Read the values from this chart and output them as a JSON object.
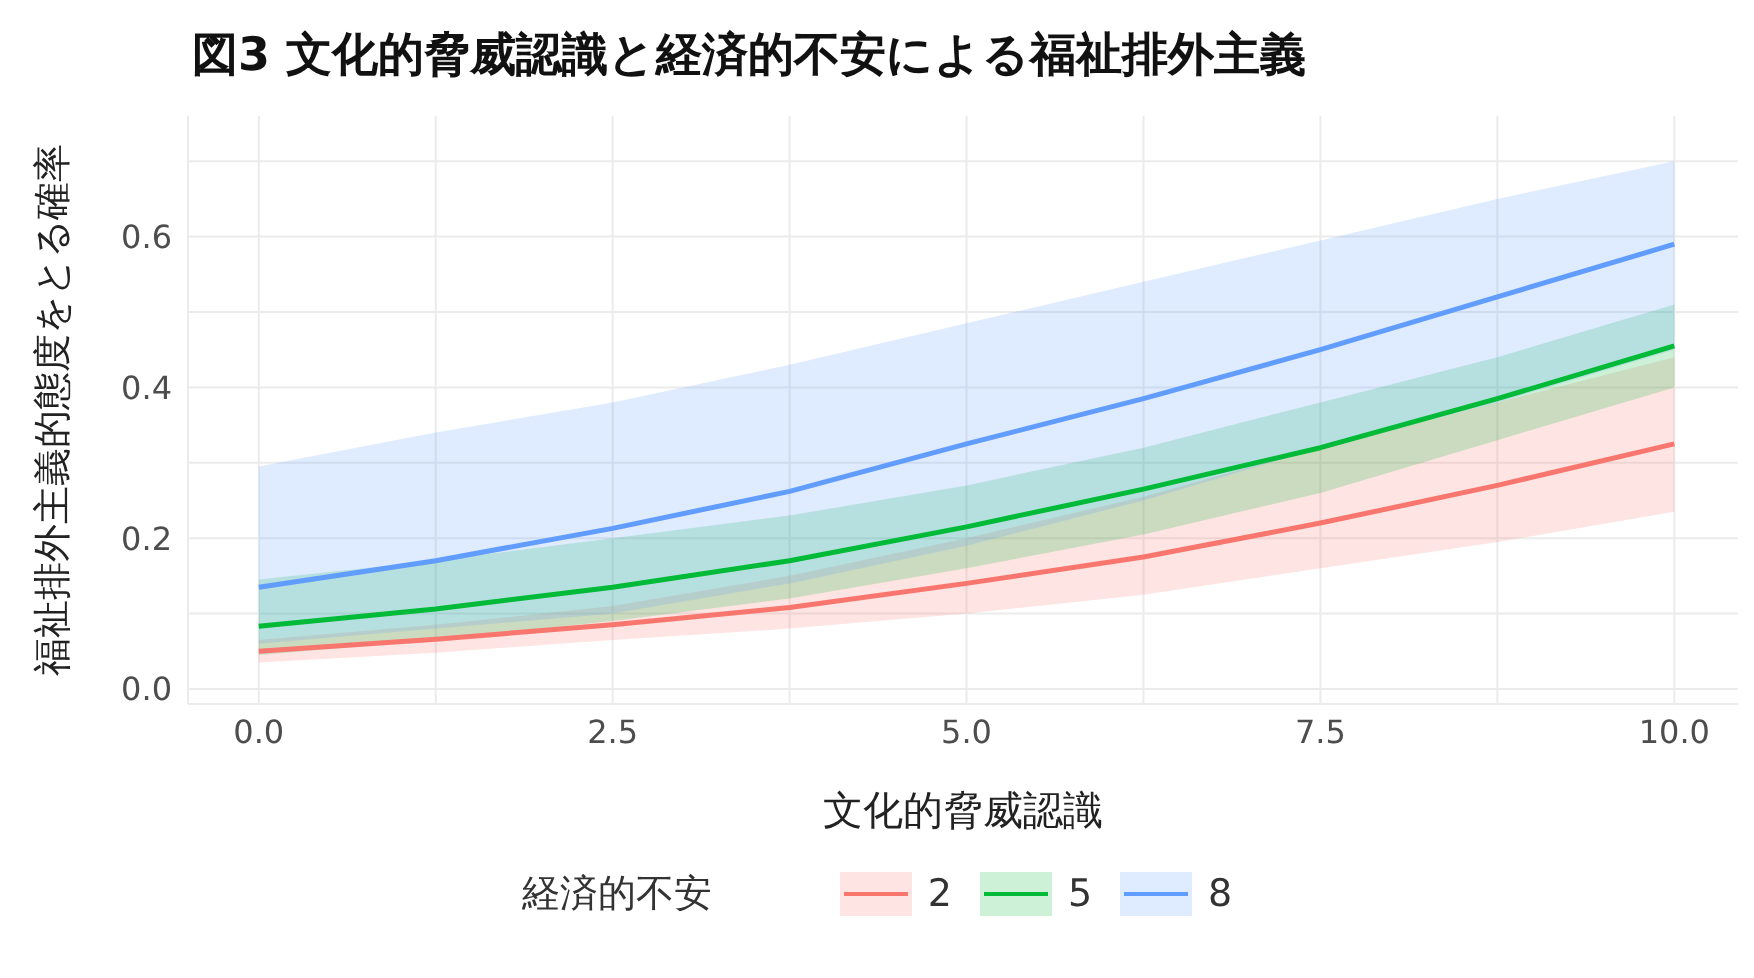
{
  "chart_data": {
    "type": "line",
    "title": "図3  文化的脅威認識と経済的不安による福祉排外主義",
    "xlabel": "文化的脅威認識",
    "ylabel": "福祉排外主義的態度をとる確率",
    "legend_title": "経済的不安",
    "x": [
      0,
      1.25,
      2.5,
      3.75,
      5,
      6.25,
      7.5,
      8.75,
      10
    ],
    "series": [
      {
        "name": "2",
        "color": "#f8766d",
        "values": [
          0.05,
          0.066,
          0.085,
          0.108,
          0.14,
          0.175,
          0.22,
          0.27,
          0.325
        ],
        "lower": [
          0.035,
          0.048,
          0.065,
          0.08,
          0.1,
          0.125,
          0.16,
          0.195,
          0.235
        ],
        "upper": [
          0.065,
          0.085,
          0.11,
          0.15,
          0.2,
          0.255,
          0.32,
          0.38,
          0.44
        ]
      },
      {
        "name": "5",
        "color": "#00ba38",
        "values": [
          0.083,
          0.106,
          0.135,
          0.17,
          0.215,
          0.265,
          0.32,
          0.385,
          0.455
        ],
        "lower": [
          0.045,
          0.065,
          0.09,
          0.12,
          0.16,
          0.205,
          0.26,
          0.33,
          0.4
        ],
        "upper": [
          0.145,
          0.17,
          0.2,
          0.23,
          0.27,
          0.32,
          0.38,
          0.44,
          0.51
        ]
      },
      {
        "name": "8",
        "color": "#619cff",
        "values": [
          0.135,
          0.17,
          0.213,
          0.262,
          0.325,
          0.385,
          0.45,
          0.52,
          0.59
        ],
        "lower": [
          0.06,
          0.08,
          0.1,
          0.14,
          0.19,
          0.25,
          0.32,
          0.38,
          0.45
        ],
        "upper": [
          0.295,
          0.34,
          0.38,
          0.43,
          0.485,
          0.54,
          0.595,
          0.65,
          0.7
        ]
      }
    ],
    "xlim": [
      -0.5,
      10.45
    ],
    "ylim": [
      -0.02,
      0.76
    ],
    "xticks": [
      {
        "value": 0,
        "label": "0.0"
      },
      {
        "value": 1.25,
        "label": null
      },
      {
        "value": 2.5,
        "label": "2.5"
      },
      {
        "value": 3.75,
        "label": null
      },
      {
        "value": 5,
        "label": "5.0"
      },
      {
        "value": 6.25,
        "label": null
      },
      {
        "value": 7.5,
        "label": "7.5"
      },
      {
        "value": 8.75,
        "label": null
      },
      {
        "value": 10,
        "label": "10.0"
      }
    ],
    "yticks": [
      {
        "value": 0,
        "label": "0.0"
      },
      {
        "value": 0.1,
        "label": null
      },
      {
        "value": 0.2,
        "label": "0.2"
      },
      {
        "value": 0.3,
        "label": null
      },
      {
        "value": 0.4,
        "label": "0.4"
      },
      {
        "value": 0.5,
        "label": null
      },
      {
        "value": 0.6,
        "label": "0.6"
      },
      {
        "value": 0.7,
        "label": null
      }
    ],
    "grid": true,
    "legend": "bottom",
    "line_style": "solid"
  }
}
